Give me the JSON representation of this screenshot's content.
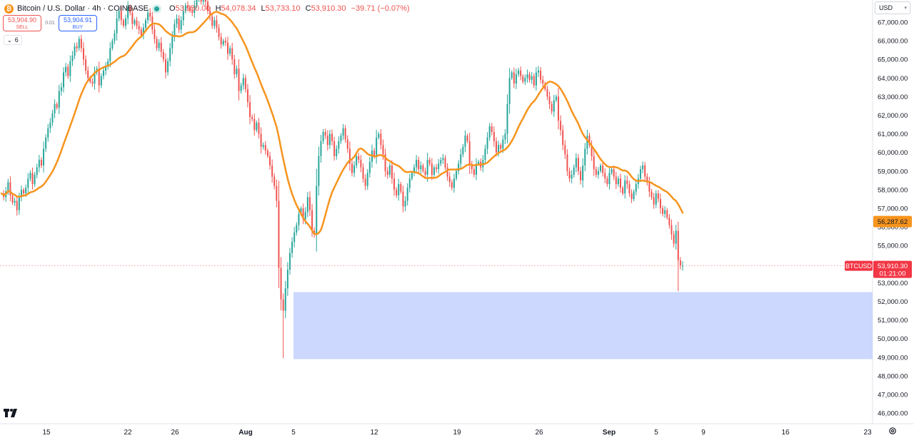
{
  "header": {
    "title": "Bitcoin / U.S. Dollar · 4h · COINBASE",
    "ohlc": {
      "o_key": "O",
      "o": "53,950.00",
      "h_key": "H",
      "h": "54,078.34",
      "l_key": "L",
      "l": "53,733.10",
      "c_key": "C",
      "c": "53,910.30",
      "change": "−39.71 (−0.07%)"
    }
  },
  "trade": {
    "sell_price": "53,904.90",
    "sell_label": "SELL",
    "spread": "0.01",
    "buy_price": "53,904.91",
    "buy_label": "BUY"
  },
  "indicators_toggle": "6",
  "currency": "USD",
  "colors": {
    "up": "#26a69a",
    "down": "#ef5350",
    "ma": "#f7941d",
    "zone": "#c9d6fd",
    "last": "#f23645"
  },
  "chart_data": {
    "type": "candlestick",
    "title": "Bitcoin / U.S. Dollar · 4h · COINBASE",
    "xlabel": "",
    "ylabel": "",
    "ylim": [
      45500,
      68000
    ],
    "y_ticks": [
      "46,000.00",
      "47,000.00",
      "48,000.00",
      "49,000.00",
      "50,000.00",
      "51,000.00",
      "52,000.00",
      "53,000.00",
      "54,000.00",
      "55,000.00",
      "56,000.00",
      "57,000.00",
      "58,000.00",
      "59,000.00",
      "60,000.00",
      "61,000.00",
      "62,000.00",
      "63,000.00",
      "64,000.00",
      "65,000.00",
      "66,000.00",
      "67,000.00"
    ],
    "x_ticks": [
      "15",
      "22",
      "26",
      "Aug",
      "5",
      "12",
      "19",
      "26",
      "Sep",
      "5",
      "9",
      "16",
      "23"
    ],
    "close_series": [
      57800,
      57600,
      57900,
      58400,
      57700,
      57300,
      57400,
      56900,
      57600,
      58000,
      57800,
      58100,
      58600,
      58900,
      58300,
      58800,
      59200,
      59600,
      59300,
      60200,
      60800,
      61300,
      61600,
      62100,
      62600,
      62400,
      63300,
      63500,
      64300,
      64600,
      64100,
      64900,
      65200,
      65700,
      65600,
      66100,
      65600,
      65000,
      64400,
      64000,
      63800,
      63700,
      64300,
      64500,
      63600,
      64100,
      64400,
      64600,
      64900,
      65600,
      66000,
      66400,
      67200,
      67600,
      67100,
      66800,
      67200,
      67800,
      67500,
      66900,
      67100,
      66800,
      66600,
      66300,
      66700,
      67100,
      67500,
      67300,
      66600,
      66100,
      65600,
      65900,
      65400,
      65000,
      64300,
      64900,
      65600,
      66200,
      66900,
      67200,
      66600,
      67100,
      67600,
      67900,
      67800,
      67600,
      67500,
      67900,
      68300,
      68600,
      68100,
      68400,
      68100,
      67600,
      67300,
      66800,
      67100,
      66700,
      66200,
      65800,
      66000,
      65900,
      65300,
      65600,
      65000,
      64200,
      64500,
      63300,
      63600,
      64000,
      63400,
      62700,
      61900,
      61800,
      61200,
      61600,
      61000,
      60300,
      60400,
      60100,
      59800,
      59300,
      58700,
      58200,
      57400,
      53800,
      52100,
      51500,
      52700,
      53700,
      54600,
      55200,
      55700,
      56100,
      56700,
      57000,
      56400,
      56800,
      57600,
      56900,
      55800,
      55600,
      58200,
      59800,
      60600,
      61100,
      60900,
      60400,
      61000,
      60600,
      59800,
      60200,
      60600,
      60900,
      61300,
      60700,
      60200,
      59400,
      58900,
      59300,
      59800,
      59600,
      59200,
      58600,
      58200,
      58900,
      59500,
      60100,
      59800,
      60800,
      61000,
      60400,
      59900,
      59000,
      58800,
      59300,
      58600,
      58000,
      57700,
      58300,
      57900,
      57100,
      57400,
      58100,
      58600,
      58900,
      59200,
      59600,
      59100,
      59300,
      59000,
      58800,
      59600,
      59400,
      58800,
      59200,
      59100,
      59400,
      59600,
      59700,
      59200,
      58700,
      58400,
      58100,
      58600,
      59000,
      59400,
      59900,
      60300,
      60900,
      60600,
      59300,
      59100,
      58800,
      59400,
      59500,
      59200,
      59600,
      60200,
      60800,
      61400,
      61100,
      60600,
      60000,
      60400,
      60200,
      60700,
      61000,
      62600,
      64000,
      64300,
      63700,
      64200,
      64400,
      64100,
      63800,
      64000,
      64200,
      63900,
      64100,
      63600,
      64300,
      64400,
      63900,
      63700,
      63400,
      63000,
      62600,
      62200,
      62800,
      63000,
      61700,
      61200,
      60400,
      59900,
      59000,
      58600,
      58800,
      59200,
      59700,
      59000,
      58500,
      59300,
      60200,
      60900,
      60400,
      59800,
      59100,
      58800,
      59000,
      59300,
      58900,
      58600,
      58300,
      58900,
      59100,
      58700,
      58300,
      58600,
      58100,
      57800,
      58500,
      58300,
      57800,
      57500,
      57900,
      58300,
      58600,
      59100,
      59300,
      58700,
      58400,
      57900,
      57600,
      57200,
      57800,
      57500,
      57000,
      56700,
      56900,
      56500,
      56100,
      55600,
      55100,
      55800,
      54200,
      53900,
      53910.3
    ],
    "annotations": [
      {
        "label": "56,287.62",
        "series": "moving average"
      },
      {
        "label": "BTCUSD",
        "value": "53,910.30",
        "timer": "01:21:00"
      },
      {
        "type": "zone",
        "from": 48900,
        "to": 52500
      }
    ],
    "grid": false
  }
}
